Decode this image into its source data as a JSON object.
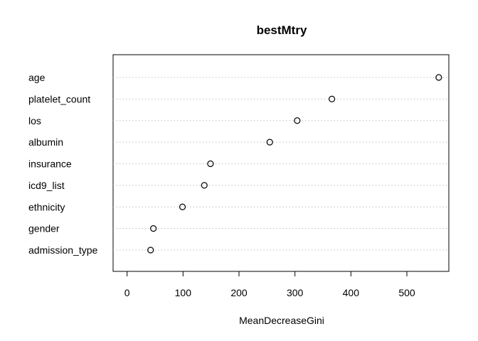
{
  "chart_data": {
    "type": "scatter",
    "title": "bestMtry",
    "xlabel": "MeanDecreaseGini",
    "ylabel": "",
    "xlim": [
      -25,
      575
    ],
    "xticks": [
      "0",
      "100",
      "200",
      "300",
      "400",
      "500"
    ],
    "grid": "horizontal dotted",
    "categories": [
      "age",
      "platelet_count",
      "los",
      "albumin",
      "insurance",
      "icd9_list",
      "ethnicity",
      "gender",
      "admission_type"
    ],
    "values": [
      557,
      366,
      304,
      255,
      149,
      138,
      99,
      47,
      42
    ]
  }
}
